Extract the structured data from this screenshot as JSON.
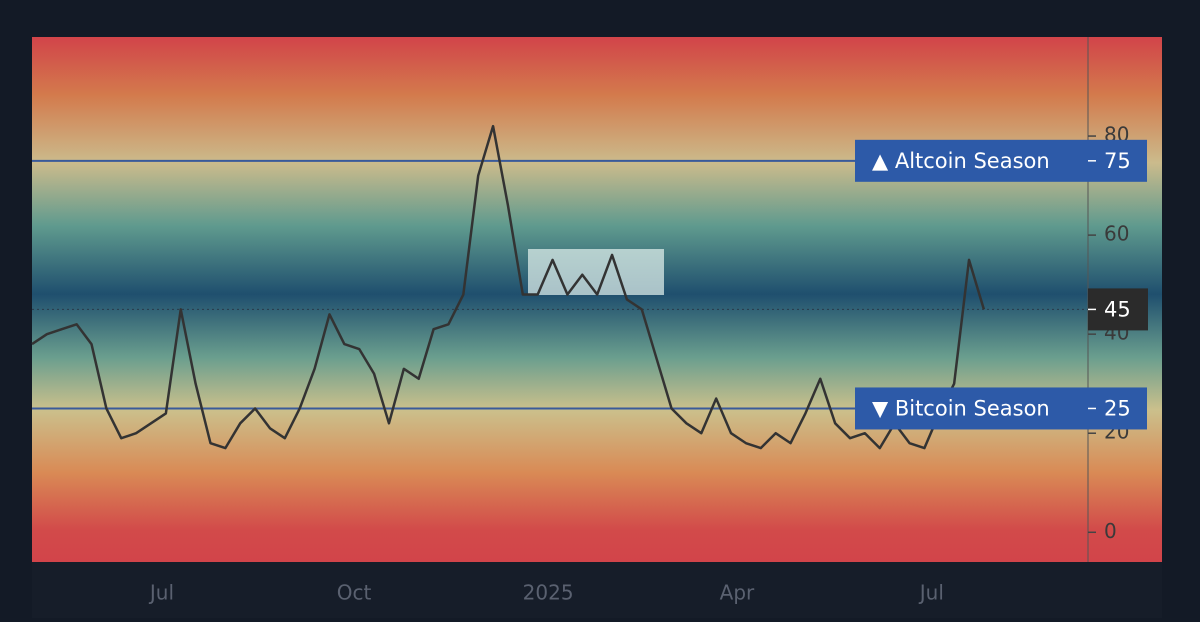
{
  "chart_data": {
    "type": "line",
    "values": [
      38,
      40,
      41,
      42,
      38,
      25,
      19,
      20,
      22,
      24,
      45,
      30,
      18,
      17,
      22,
      25,
      21,
      19,
      25,
      33,
      44,
      38,
      37,
      32,
      22,
      33,
      31,
      41,
      42,
      48,
      72,
      82,
      66,
      48,
      48,
      55,
      48,
      52,
      48,
      56,
      47,
      45,
      35,
      25,
      22,
      20,
      27,
      20,
      18,
      17,
      20,
      18,
      24,
      31,
      22,
      19,
      20,
      17,
      22,
      18,
      17,
      24,
      30,
      55,
      45
    ],
    "color": "#333333",
    "xlim": [
      0,
      71
    ],
    "xticks": [
      {
        "value": 8.74,
        "label": "Jul"
      },
      {
        "value": 21.65,
        "label": "Oct"
      },
      {
        "value": 34.7,
        "label": "2025"
      },
      {
        "value": 47.4,
        "label": "Apr"
      },
      {
        "value": 60.5,
        "label": "Jul"
      }
    ],
    "ylim": [
      -6,
      100
    ],
    "yticks": [
      0,
      20,
      40,
      60,
      80
    ],
    "thresholds": [
      {
        "label": "▲ Altcoin Season",
        "value": 75
      },
      {
        "label": "▼ Bitcoin Season",
        "value": 25
      }
    ],
    "current": 45
  }
}
